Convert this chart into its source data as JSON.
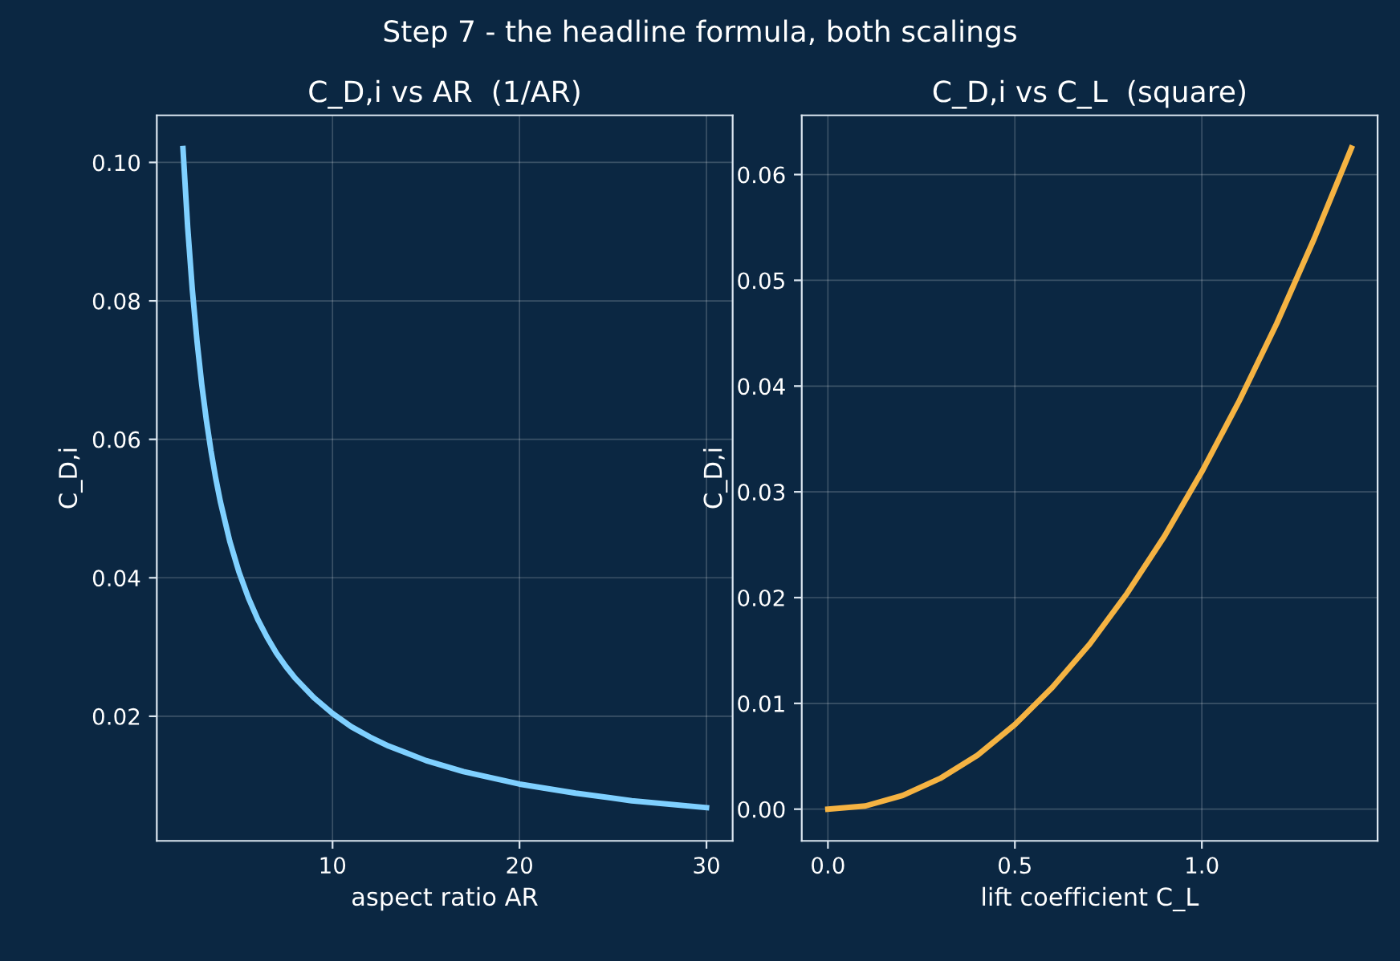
{
  "chart_data": [
    {
      "type": "line",
      "title": "C_D,i vs AR  (1/AR)",
      "xlabel": "aspect ratio AR",
      "ylabel": "C_D,i",
      "annotations": [
        "Step 7 - the headline formula, both scalings"
      ],
      "x": [
        2,
        2.25,
        2.5,
        2.75,
        3,
        3.25,
        3.5,
        3.75,
        4,
        4.5,
        5,
        5.5,
        6,
        6.5,
        7,
        7.5,
        8,
        9,
        10,
        11,
        12,
        13,
        15,
        17,
        20,
        23,
        26,
        30
      ],
      "series": [
        {
          "color": "#7fd0ff",
          "values": [
            0.102,
            0.0907,
            0.0816,
            0.0742,
            0.068,
            0.0628,
            0.0583,
            0.0544,
            0.051,
            0.0453,
            0.0408,
            0.0371,
            0.034,
            0.0314,
            0.0291,
            0.0272,
            0.0255,
            0.0227,
            0.0204,
            0.0185,
            0.017,
            0.0157,
            0.0136,
            0.012,
            0.0102,
            0.0089,
            0.0078,
            0.0068
          ]
        }
      ],
      "xlim": [
        0.6,
        31.4
      ],
      "xticks": [
        10,
        20,
        30
      ],
      "ylim": [
        0.002,
        0.1068
      ],
      "yticks": [
        {
          "value": 0.02,
          "label": "0.02"
        },
        {
          "value": 0.04,
          "label": "0.04"
        },
        {
          "value": 0.06,
          "label": "0.06"
        },
        {
          "value": 0.08,
          "label": "0.08"
        },
        {
          "value": 0.1,
          "label": "0.10"
        }
      ],
      "grid": true,
      "line_style": "solid"
    },
    {
      "type": "line",
      "title": "C_D,i vs C_L  (square)",
      "xlabel": "lift coefficient C_L",
      "ylabel": "C_D,i",
      "x": [
        0,
        0.1,
        0.2,
        0.3,
        0.4,
        0.5,
        0.6,
        0.7,
        0.8,
        0.9,
        1.0,
        1.1,
        1.2,
        1.3,
        1.4
      ],
      "series": [
        {
          "color": "#f5b342",
          "values": [
            0,
            0.0003,
            0.0013,
            0.0029,
            0.0051,
            0.008,
            0.0115,
            0.0156,
            0.0204,
            0.0258,
            0.0319,
            0.0386,
            0.0459,
            0.0539,
            0.0625
          ]
        }
      ],
      "xlim": [
        -0.07,
        1.47
      ],
      "xticks": [
        {
          "value": 0,
          "label": "0.0"
        },
        {
          "value": 0.5,
          "label": "0.5"
        },
        {
          "value": 1,
          "label": "1.0"
        }
      ],
      "ylim": [
        -0.003,
        0.0656
      ],
      "yticks": [
        {
          "value": 0,
          "label": "0.00"
        },
        {
          "value": 0.01,
          "label": "0.01"
        },
        {
          "value": 0.02,
          "label": "0.02"
        },
        {
          "value": 0.03,
          "label": "0.03"
        },
        {
          "value": 0.04,
          "label": "0.04"
        },
        {
          "value": 0.05,
          "label": "0.05"
        },
        {
          "value": 0.06,
          "label": "0.06"
        }
      ],
      "grid": true,
      "line_style": "solid"
    }
  ]
}
